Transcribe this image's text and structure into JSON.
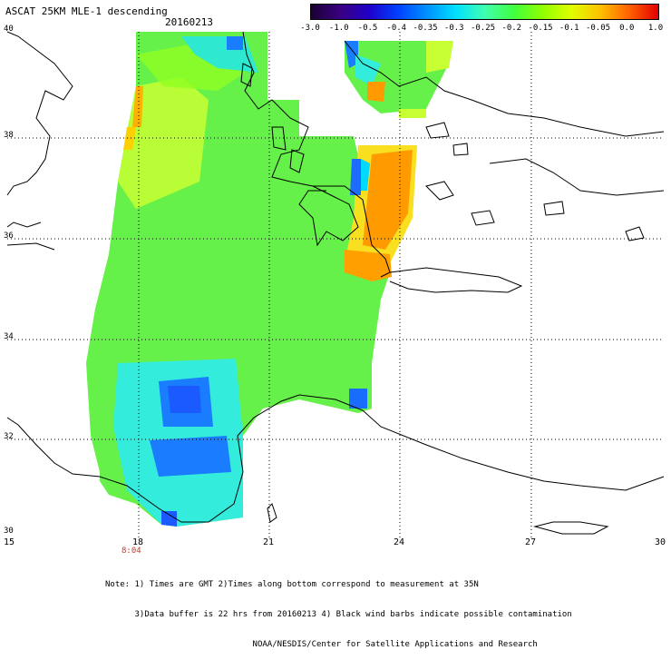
{
  "title": "ASCAT 25KM MLE-1 descending",
  "date": "20160213",
  "colorbar": {
    "ticks": [
      "-3.0",
      "-1.0",
      "-0.5",
      "-0.4",
      "-0.35",
      "-0.3",
      "-0.25",
      "-0.2",
      "-0.15",
      "-0.1",
      "-0.05",
      "0.0",
      "1.0"
    ],
    "colors": [
      "#1a0033",
      "#3a0080",
      "#2000c8",
      "#0040ff",
      "#0090ff",
      "#00e0ff",
      "#40ffb0",
      "#40ff40",
      "#90ff00",
      "#e0ff00",
      "#ffc000",
      "#ff6000",
      "#e00000"
    ]
  },
  "latitude_labels": [
    "40",
    "38",
    "36",
    "34",
    "32",
    "30"
  ],
  "longitude_labels": [
    "15",
    "18",
    "21",
    "24",
    "27",
    "30"
  ],
  "time_label": "8:04",
  "note_lines": [
    "Note: 1) Times are GMT 2)Times along bottom correspond to measurement at 35N",
    "      3)Data buffer is 22 hrs from 20160213 4) Black wind barbs indicate possible contamination",
    "                              NOAA/NESDIS/Center for Satellite Applications and Research"
  ]
}
